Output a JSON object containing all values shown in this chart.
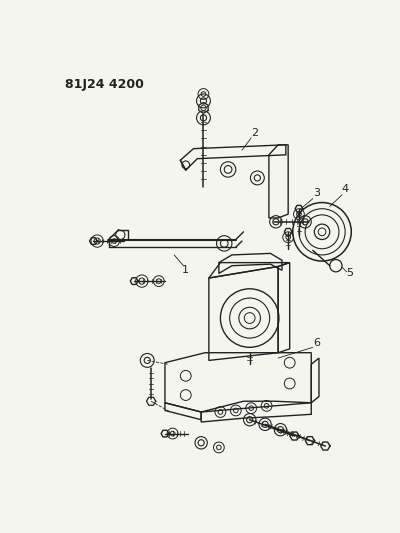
{
  "title_code": "81J24 4200",
  "bg_color": "#f5f5f0",
  "line_color": "#222222",
  "fig_width": 4.0,
  "fig_height": 5.33,
  "dpi": 100,
  "title_fontsize": 9,
  "title_fontweight": "bold"
}
